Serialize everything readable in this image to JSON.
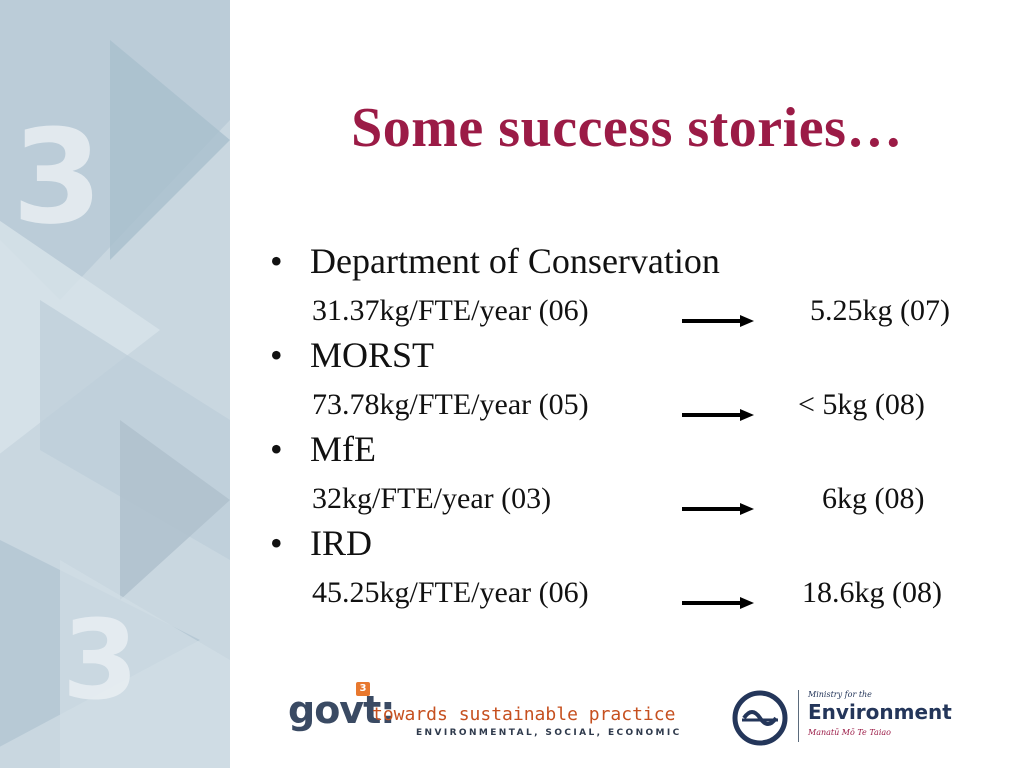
{
  "title": "Some success stories…",
  "items": [
    {
      "bullet": "•",
      "label": "Department of Conservation",
      "before": "31.37kg/FTE/year (06)",
      "after": "5.25kg (07)"
    },
    {
      "bullet": "•",
      "label": "MORST",
      "before": "73.78kg/FTE/year (05)",
      "after": "< 5kg (08)"
    },
    {
      "bullet": "•",
      "label": "MfE",
      "before": "32kg/FTE/year (03)",
      "after": "6kg (08)"
    },
    {
      "bullet": "•",
      "label": "IRD",
      "before": "45.25kg/FTE/year (06)",
      "after": "18.6kg (08)"
    }
  ],
  "side_band": {
    "digits": [
      "3",
      "3"
    ]
  },
  "logos": {
    "govt": {
      "word": "govt:",
      "badge": "3",
      "tagline": "towards sustainable practice",
      "subline": "ENVIRONMENTAL, SOCIAL, ECONOMIC"
    },
    "mfe": {
      "small": "Ministry for the",
      "big": "Environment",
      "maori": "Manatū Mō Te Taiao"
    }
  },
  "colors": {
    "title": "#9b1b46",
    "band": "#c9d7e0",
    "govt_orange": "#e8782e",
    "mfe_navy": "#24365a"
  }
}
